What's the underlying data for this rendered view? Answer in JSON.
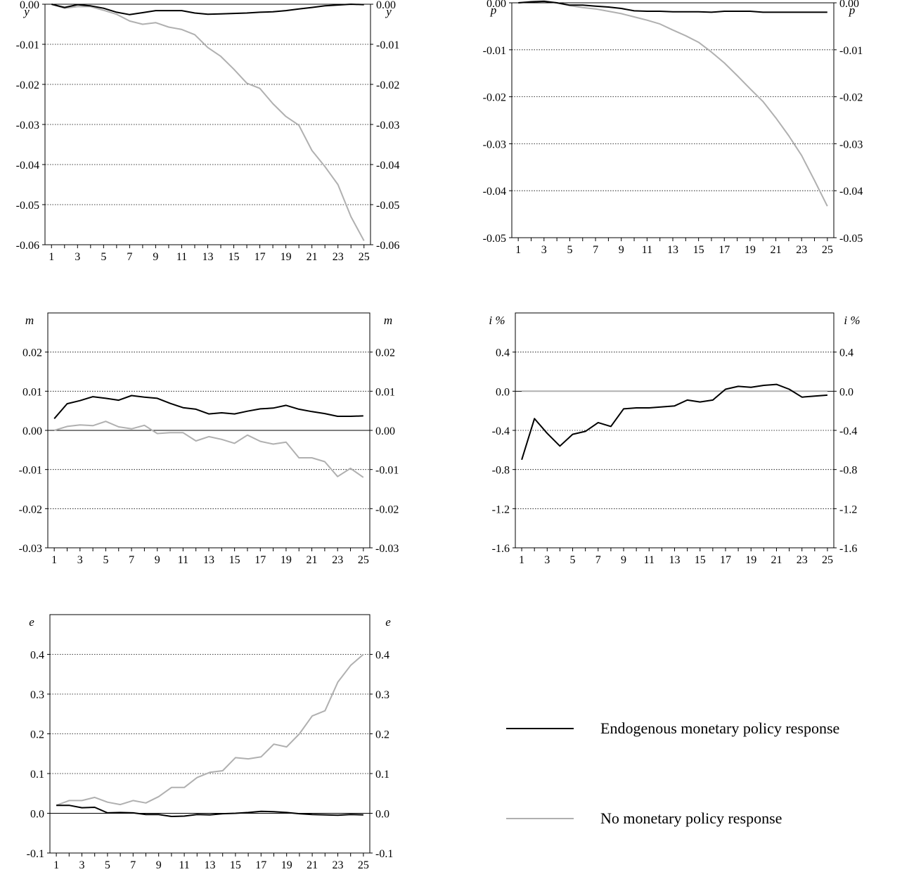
{
  "chart_data": [
    {
      "type": "line",
      "var_label": "y",
      "x": [
        1,
        2,
        3,
        4,
        5,
        6,
        7,
        8,
        9,
        10,
        11,
        12,
        13,
        14,
        15,
        16,
        17,
        18,
        19,
        20,
        21,
        22,
        23,
        24,
        25
      ],
      "x_ticks": [
        "1",
        "3",
        "5",
        "7",
        "9",
        "11",
        "13",
        "15",
        "17",
        "19",
        "21",
        "23",
        "25"
      ],
      "ylim": [
        -0.06,
        0.0
      ],
      "y_ticks": [
        "0.00",
        "-0.01",
        "-0.02",
        "-0.03",
        "-0.04",
        "-0.05",
        "-0.06"
      ],
      "series": [
        {
          "name": "Endogenous monetary policy response",
          "color": "#000000",
          "values": [
            0.0,
            -0.0008,
            -0.0001,
            -0.0004,
            -0.001,
            -0.002,
            -0.0026,
            -0.0021,
            -0.0016,
            -0.0016,
            -0.0016,
            -0.0022,
            -0.0025,
            -0.0024,
            -0.0023,
            -0.0022,
            -0.002,
            -0.0019,
            -0.0016,
            -0.0012,
            -0.0008,
            -0.0004,
            -0.0002,
            0.0,
            -0.0001
          ]
        },
        {
          "name": "No monetary policy response",
          "color": "#b0b0b0",
          "values": [
            0.0,
            -0.001,
            -0.0006,
            -0.0006,
            -0.0015,
            -0.0025,
            -0.0042,
            -0.005,
            -0.0046,
            -0.0057,
            -0.0063,
            -0.0076,
            -0.0108,
            -0.013,
            -0.0162,
            -0.0197,
            -0.021,
            -0.0248,
            -0.028,
            -0.0302,
            -0.0365,
            -0.0405,
            -0.045,
            -0.053,
            -0.059
          ]
        }
      ]
    },
    {
      "type": "line",
      "var_label": "p",
      "x": [
        1,
        2,
        3,
        4,
        5,
        6,
        7,
        8,
        9,
        10,
        11,
        12,
        13,
        14,
        15,
        16,
        17,
        18,
        19,
        20,
        21,
        22,
        23,
        24,
        25
      ],
      "x_ticks": [
        "1",
        "3",
        "5",
        "7",
        "9",
        "11",
        "13",
        "15",
        "17",
        "19",
        "21",
        "23",
        "25"
      ],
      "ylim": [
        -0.05,
        0.0
      ],
      "y_ticks": [
        "0.00",
        "-0.01",
        "-0.02",
        "-0.03",
        "-0.04",
        "-0.05"
      ],
      "series": [
        {
          "name": "Endogenous monetary policy response",
          "color": "#000000",
          "values": [
            0.0,
            0.0002,
            0.0003,
            0.0,
            -0.0005,
            -0.0005,
            -0.0007,
            -0.0009,
            -0.0012,
            -0.0017,
            -0.0018,
            -0.0018,
            -0.0019,
            -0.0019,
            -0.0019,
            -0.002,
            -0.0018,
            -0.0018,
            -0.0018,
            -0.002,
            -0.002,
            -0.002,
            -0.002,
            -0.002,
            -0.002
          ]
        },
        {
          "name": "No monetary policy response",
          "color": "#b0b0b0",
          "values": [
            0.0,
            0.0003,
            0.0004,
            0.0,
            -0.0006,
            -0.001,
            -0.0013,
            -0.0018,
            -0.0023,
            -0.003,
            -0.0037,
            -0.0045,
            -0.0058,
            -0.007,
            -0.0084,
            -0.0105,
            -0.0128,
            -0.0155,
            -0.0183,
            -0.021,
            -0.0245,
            -0.0283,
            -0.0325,
            -0.0378,
            -0.0433
          ]
        }
      ]
    },
    {
      "type": "line",
      "var_label": "m",
      "x": [
        1,
        2,
        3,
        4,
        5,
        6,
        7,
        8,
        9,
        10,
        11,
        12,
        13,
        14,
        15,
        16,
        17,
        18,
        19,
        20,
        21,
        22,
        23,
        24,
        25
      ],
      "x_ticks": [
        "1",
        "3",
        "5",
        "7",
        "9",
        "11",
        "13",
        "15",
        "17",
        "19",
        "21",
        "23",
        "25"
      ],
      "ylim": [
        -0.03,
        0.03
      ],
      "y_ticks": [
        "0.02",
        "0.01",
        "0.00",
        "-0.01",
        "-0.02",
        "-0.03"
      ],
      "series": [
        {
          "name": "Endogenous monetary policy response",
          "color": "#000000",
          "values": [
            0.003,
            0.0068,
            0.0076,
            0.0086,
            0.0082,
            0.0077,
            0.0089,
            0.0085,
            0.0082,
            0.0069,
            0.0058,
            0.0054,
            0.0042,
            0.0045,
            0.0042,
            0.0049,
            0.0055,
            0.0057,
            0.0064,
            0.0054,
            0.0048,
            0.0043,
            0.0036,
            0.0036,
            0.0037
          ]
        },
        {
          "name": "No monetary policy response",
          "color": "#b0b0b0",
          "values": [
            0.0,
            0.001,
            0.0014,
            0.0012,
            0.0023,
            0.0009,
            0.0004,
            0.0013,
            -0.0008,
            -0.0006,
            -0.0006,
            -0.0027,
            -0.0016,
            -0.0023,
            -0.0033,
            -0.0012,
            -0.0028,
            -0.0035,
            -0.003,
            -0.007,
            -0.007,
            -0.008,
            -0.0118,
            -0.0097,
            -0.012
          ]
        }
      ]
    },
    {
      "type": "line",
      "var_label": "i %",
      "x": [
        1,
        2,
        3,
        4,
        5,
        6,
        7,
        8,
        9,
        10,
        11,
        12,
        13,
        14,
        15,
        16,
        17,
        18,
        19,
        20,
        21,
        22,
        23,
        24,
        25
      ],
      "x_ticks": [
        "1",
        "3",
        "5",
        "7",
        "9",
        "11",
        "13",
        "15",
        "17",
        "19",
        "21",
        "23",
        "25"
      ],
      "ylim": [
        -1.6,
        0.8
      ],
      "y_ticks": [
        "0.4",
        "0.0",
        "-0.4",
        "-0.8",
        "-1.2",
        "-1.6"
      ],
      "series": [
        {
          "name": "Endogenous monetary policy response",
          "color": "#000000",
          "values": [
            -0.7,
            -0.28,
            -0.43,
            -0.56,
            -0.44,
            -0.41,
            -0.32,
            -0.36,
            -0.18,
            -0.17,
            -0.17,
            -0.16,
            -0.15,
            -0.09,
            -0.11,
            -0.09,
            0.02,
            0.05,
            0.04,
            0.06,
            0.07,
            0.02,
            -0.06,
            -0.05,
            -0.04
          ]
        },
        {
          "name": "No monetary policy response",
          "color": "#b0b0b0",
          "values": [
            0,
            0,
            0,
            0,
            0,
            0,
            0,
            0,
            0,
            0,
            0,
            0,
            0,
            0,
            0,
            0,
            0,
            0,
            0,
            0,
            0,
            0,
            0,
            0,
            0
          ]
        }
      ]
    },
    {
      "type": "line",
      "var_label": "e",
      "x": [
        1,
        2,
        3,
        4,
        5,
        6,
        7,
        8,
        9,
        10,
        11,
        12,
        13,
        14,
        15,
        16,
        17,
        18,
        19,
        20,
        21,
        22,
        23,
        24,
        25
      ],
      "x_ticks": [
        "1",
        "3",
        "5",
        "7",
        "9",
        "11",
        "13",
        "15",
        "17",
        "19",
        "21",
        "23",
        "25"
      ],
      "ylim": [
        -0.1,
        0.5
      ],
      "y_ticks": [
        "0.4",
        "0.3",
        "0.2",
        "0.1",
        "0.0",
        "-0.1"
      ],
      "series": [
        {
          "name": "Endogenous monetary policy response",
          "color": "#000000",
          "values": [
            0.02,
            0.02,
            0.014,
            0.015,
            0.001,
            0.002,
            0.001,
            -0.003,
            -0.003,
            -0.008,
            -0.007,
            -0.003,
            -0.004,
            -0.001,
            0.0,
            0.002,
            0.005,
            0.004,
            0.002,
            -0.001,
            -0.003,
            -0.004,
            -0.005,
            -0.003,
            -0.004
          ]
        },
        {
          "name": "No monetary policy response",
          "color": "#b0b0b0",
          "values": [
            0.02,
            0.032,
            0.032,
            0.04,
            0.028,
            0.022,
            0.032,
            0.026,
            0.042,
            0.065,
            0.065,
            0.09,
            0.103,
            0.107,
            0.14,
            0.137,
            0.142,
            0.174,
            0.167,
            0.2,
            0.245,
            0.258,
            0.33,
            0.372,
            0.4
          ]
        }
      ]
    }
  ],
  "legend": [
    {
      "label": "Endogenous monetary policy response",
      "color": "#000000"
    },
    {
      "label": "No monetary policy response",
      "color": "#b0b0b0"
    }
  ]
}
